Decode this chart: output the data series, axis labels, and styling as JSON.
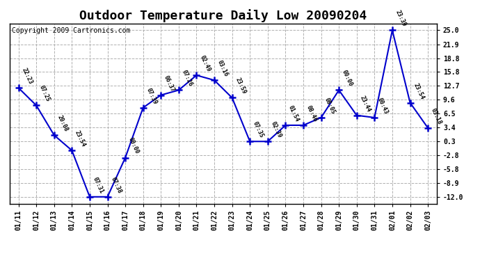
{
  "title": "Outdoor Temperature Daily Low 20090204",
  "copyright": "Copyright 2009 Cartronics.com",
  "x_labels": [
    "01/11",
    "01/12",
    "01/13",
    "01/14",
    "01/15",
    "01/16",
    "01/17",
    "01/18",
    "01/19",
    "01/20",
    "01/21",
    "01/22",
    "01/23",
    "01/24",
    "01/25",
    "01/26",
    "01/27",
    "01/28",
    "01/29",
    "01/30",
    "01/31",
    "02/01",
    "02/02",
    "02/03"
  ],
  "y_values": [
    12.2,
    8.3,
    1.7,
    -1.7,
    -12.0,
    -12.0,
    -3.3,
    7.8,
    10.6,
    11.7,
    15.0,
    13.9,
    10.0,
    0.3,
    0.3,
    3.9,
    3.9,
    5.6,
    11.7,
    6.1,
    5.6,
    25.0,
    8.9,
    3.3
  ],
  "annotations": [
    "22:23",
    "07:25",
    "20:08",
    "23:54",
    "07:31",
    "07:38",
    "00:00",
    "07:39",
    "06:37",
    "07:26",
    "02:49",
    "03:16",
    "23:59",
    "07:35",
    "02:39",
    "01:54",
    "08:46",
    "08:05",
    "00:00",
    "23:44",
    "00:43",
    "23:39",
    "23:54",
    "03:18"
  ],
  "line_color": "#0000cc",
  "marker_color": "#0000cc",
  "bg_color": "#ffffff",
  "grid_color": "#b0b0b0",
  "y_ticks": [
    -12.0,
    -8.9,
    -5.8,
    -2.8,
    0.3,
    3.4,
    6.5,
    9.6,
    12.7,
    15.8,
    18.8,
    21.9,
    25.0
  ],
  "ylim": [
    -13.5,
    26.5
  ],
  "title_fontsize": 13,
  "annotation_fontsize": 6,
  "tick_fontsize": 7,
  "copyright_fontsize": 7
}
